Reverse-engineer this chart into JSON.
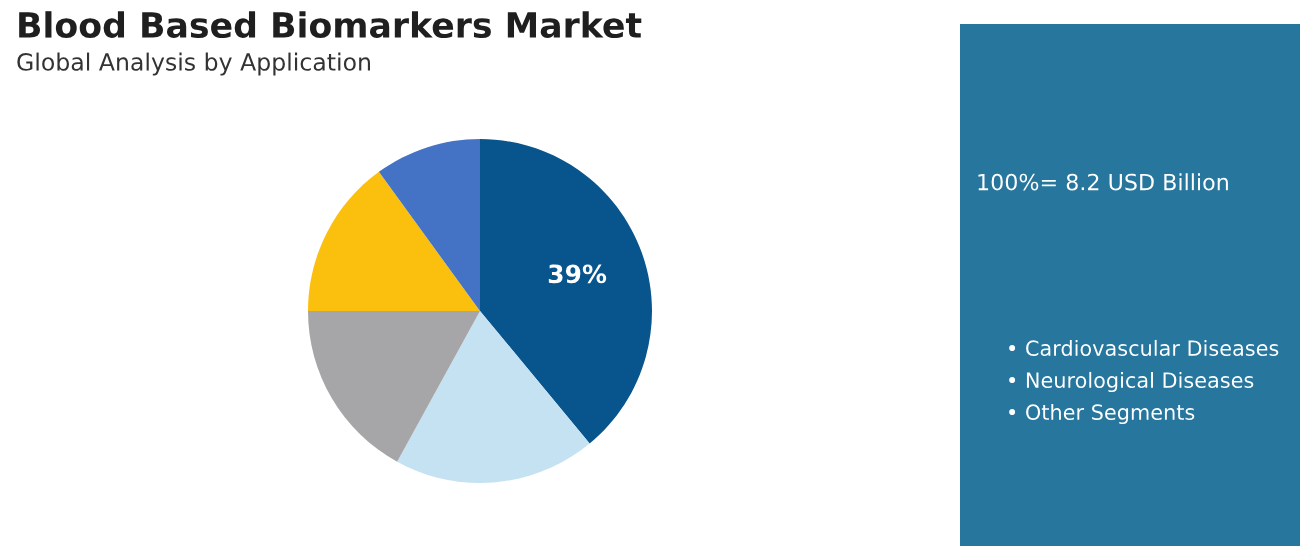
{
  "chart_data": {
    "type": "pie",
    "title": "Blood Based Biomarkers Market",
    "subtitle": "Global Analysis by Application",
    "categories": [
      null,
      null,
      null,
      null,
      null
    ],
    "values": [
      39,
      19,
      17,
      15,
      10
    ],
    "colors": [
      "#08548c",
      "#c5e2f3",
      "#a6a6a8",
      "#fbbf0e",
      "#4472c4"
    ],
    "value_labels": [
      "39%",
      null,
      null,
      null,
      null
    ],
    "annotations": [
      "100%= 8.2 USD Billion",
      "• Cardiovascular Diseases",
      "• Neurological Diseases",
      "• Other Segments"
    ]
  }
}
